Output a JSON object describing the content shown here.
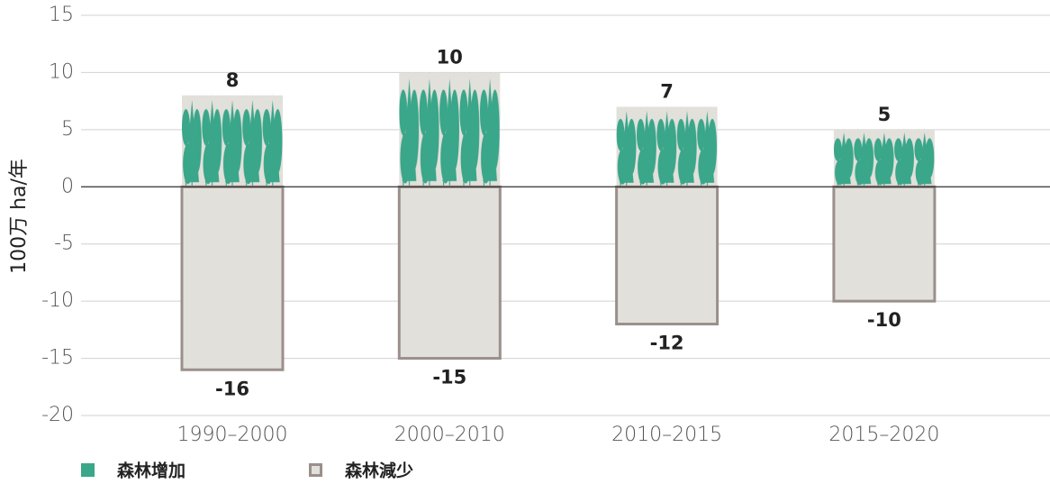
{
  "chart_data": {
    "type": "bar",
    "y_label": "100万 ha/年",
    "categories": [
      "1990–2000",
      "2000–2010",
      "2010–2015",
      "2015–2020"
    ],
    "series": [
      {
        "name": "森林增加",
        "color": "#3aa68a",
        "values": [
          8,
          10,
          7,
          5
        ]
      },
      {
        "name": "森林減少",
        "color": "#9b8f8c",
        "values": [
          -16,
          -15,
          -12,
          -10
        ]
      }
    ],
    "ylim": [
      -20,
      15
    ],
    "yticks": [
      -20,
      -15,
      -10,
      -5,
      0,
      5,
      10,
      15
    ],
    "grid": true
  }
}
